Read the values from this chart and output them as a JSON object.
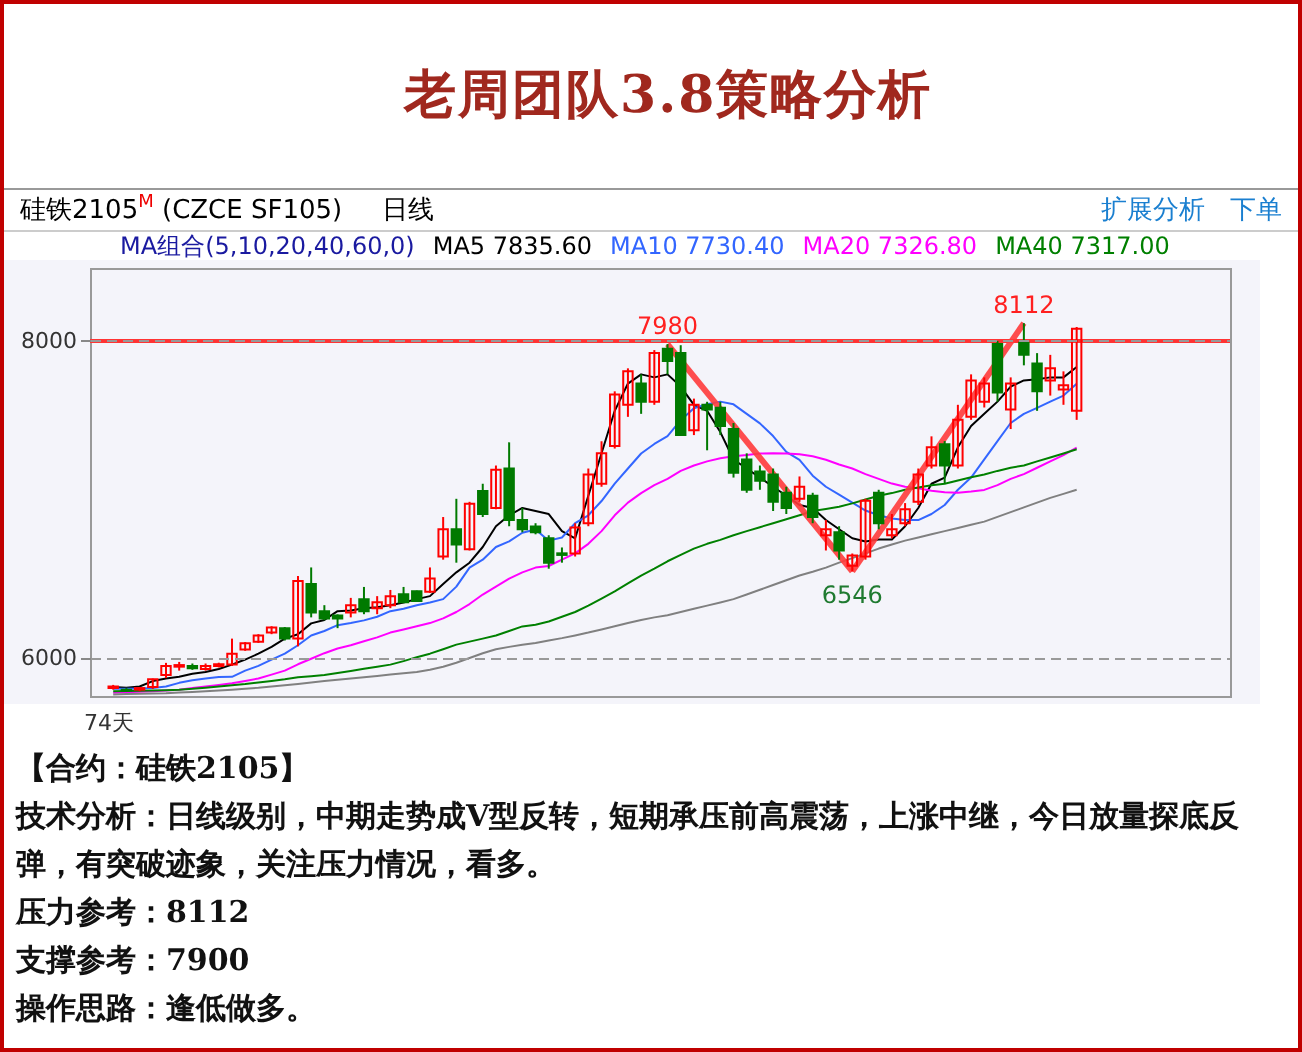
{
  "chart_data": {
    "type": "candlestick",
    "title": "老周团队3.8策略分析",
    "subtitle": "硅铁2105$^{M}$ (CZCE SF105)",
    "categories": [
      null,
      null,
      null,
      null,
      null,
      null,
      null,
      null,
      null,
      null,
      null,
      null,
      null,
      null,
      null,
      null,
      null,
      null,
      null,
      null,
      null,
      null,
      null,
      null,
      null,
      null,
      null,
      null,
      null,
      null,
      null,
      null,
      null,
      null,
      null,
      null,
      null,
      null,
      null,
      null,
      null,
      null,
      null,
      null,
      null,
      null,
      null,
      null,
      null,
      null,
      null,
      null,
      null,
      null,
      null,
      null,
      null,
      null,
      null,
      null,
      null,
      null,
      null,
      null,
      null,
      null,
      null,
      null,
      null,
      null,
      null,
      null,
      null,
      null
    ],
    "ohlc": [
      [
        5810,
        5830,
        5800,
        5820
      ],
      [
        5800,
        5810,
        5785,
        5795
      ],
      [
        5800,
        5815,
        5790,
        5810
      ],
      [
        5816,
        5870,
        5805,
        5866
      ],
      [
        5892,
        5969,
        5873,
        5950
      ],
      [
        5945,
        5975,
        5920,
        5955
      ],
      [
        5950,
        5965,
        5925,
        5935
      ],
      [
        5930,
        5965,
        5920,
        5950
      ],
      [
        5950,
        5970,
        5940,
        5960
      ],
      [
        5958,
        6122,
        5950,
        6027
      ],
      [
        6053,
        6100,
        6045,
        6092
      ],
      [
        6103,
        6150,
        6095,
        6142
      ],
      [
        6161,
        6200,
        6150,
        6192
      ],
      [
        6188,
        6195,
        6110,
        6122
      ],
      [
        6122,
        6517,
        6073,
        6486
      ],
      [
        6467,
        6571,
        6256,
        6287
      ],
      [
        6295,
        6333,
        6238,
        6249
      ],
      [
        6268,
        6275,
        6188,
        6249
      ],
      [
        6287,
        6379,
        6256,
        6333
      ],
      [
        6371,
        6448,
        6276,
        6295
      ],
      [
        6314,
        6390,
        6276,
        6352
      ],
      [
        6333,
        6429,
        6314,
        6390
      ],
      [
        6402,
        6448,
        6352,
        6352
      ],
      [
        6421,
        6425,
        6355,
        6360
      ],
      [
        6417,
        6571,
        6410,
        6502
      ],
      [
        6640,
        6889,
        6620,
        6812
      ],
      [
        6812,
        7004,
        6601,
        6716
      ],
      [
        6686,
        6985,
        6678,
        6973
      ],
      [
        7053,
        7099,
        6889,
        6908
      ],
      [
        6946,
        7214,
        6938,
        7187
      ],
      [
        7195,
        7360,
        6831,
        6870
      ],
      [
        6870,
        6946,
        6793,
        6812
      ],
      [
        6830,
        6850,
        6780,
        6793
      ],
      [
        6755,
        6774,
        6563,
        6601
      ],
      [
        6660,
        6697,
        6601,
        6650
      ],
      [
        6659,
        6850,
        6640,
        6823
      ],
      [
        6850,
        7195,
        6831,
        7157
      ],
      [
        7099,
        7367,
        7080,
        7291
      ],
      [
        7337,
        7682,
        7321,
        7662
      ],
      [
        7597,
        7827,
        7521,
        7808
      ],
      [
        7731,
        7789,
        7540,
        7616
      ],
      [
        7616,
        7942,
        7597,
        7923
      ],
      [
        7950,
        7980,
        7789,
        7873
      ],
      [
        7923,
        7973,
        7406,
        7406
      ],
      [
        7436,
        7636,
        7406,
        7597
      ],
      [
        7597,
        7616,
        7310,
        7567
      ],
      [
        7578,
        7616,
        7406,
        7463
      ],
      [
        7444,
        7482,
        7138,
        7168
      ],
      [
        7252,
        7291,
        7042,
        7061
      ],
      [
        7176,
        7214,
        7061,
        7118
      ],
      [
        7157,
        7195,
        6927,
        6985
      ],
      [
        7042,
        7080,
        6908,
        6946
      ],
      [
        7004,
        7145,
        6985,
        7080
      ],
      [
        7023,
        7042,
        6850,
        6889
      ],
      [
        6774,
        6870,
        6678,
        6812
      ],
      [
        6793,
        6831,
        6620,
        6678
      ],
      [
        6582,
        6659,
        6546,
        6647
      ],
      [
        6640,
        7004,
        6620,
        6992
      ],
      [
        7042,
        7061,
        6812,
        6850
      ],
      [
        6774,
        6908,
        6755,
        6812
      ],
      [
        6850,
        6977,
        6831,
        6938
      ],
      [
        6985,
        7195,
        6965,
        7157
      ],
      [
        7214,
        7398,
        7195,
        7329
      ],
      [
        7348,
        7368,
        7100,
        7214
      ],
      [
        7214,
        7597,
        7195,
        7502
      ],
      [
        7521,
        7789,
        7502,
        7751
      ],
      [
        7616,
        7770,
        7580,
        7731
      ],
      [
        7980,
        8000,
        7617,
        7674
      ],
      [
        7567,
        7770,
        7444,
        7731
      ],
      [
        7988,
        8112,
        7846,
        7912
      ],
      [
        7858,
        7923,
        7559,
        7682
      ],
      [
        7751,
        7912,
        7655,
        7827
      ],
      [
        7693,
        7808,
        7597,
        7720
      ],
      [
        7559,
        8088,
        7502,
        8076
      ]
    ],
    "series": [
      {
        "name": "MA5 7835.60",
        "color": "#000000",
        "type": "line",
        "values": [
          5816,
          5812,
          5820,
          5854,
          5870,
          5881,
          5900,
          5912,
          5930,
          5958,
          5990,
          6027,
          6070,
          6122,
          6150,
          6218,
          6240,
          6295,
          6300,
          6314,
          6320,
          6333,
          6350,
          6371,
          6390,
          6467,
          6540,
          6601,
          6700,
          6831,
          6900,
          6946,
          6927,
          6908,
          6800,
          6755,
          7023,
          7291,
          7559,
          7731,
          7789,
          7770,
          7789,
          7712,
          7597,
          7559,
          7425,
          7252,
          7195,
          7138,
          7080,
          7023,
          6965,
          6946,
          6870,
          6812,
          6755,
          6735,
          6747,
          6747,
          6831,
          6946,
          7099,
          7138,
          7329,
          7463,
          7540,
          7617,
          7712,
          7751,
          7758,
          7770,
          7770,
          7836
        ]
      },
      {
        "name": "MA10 7730.40",
        "color": "#3366ff",
        "type": "line",
        "values": [
          5805,
          5805,
          5807,
          5810,
          5820,
          5843,
          5860,
          5870,
          5880,
          5881,
          5920,
          5950,
          5990,
          6027,
          6080,
          6142,
          6170,
          6207,
          6220,
          6237,
          6260,
          6295,
          6310,
          6333,
          6350,
          6371,
          6450,
          6570,
          6620,
          6700,
          6735,
          6790,
          6810,
          6740,
          6760,
          6850,
          6900,
          6990,
          7100,
          7195,
          7290,
          7350,
          7400,
          7500,
          7575,
          7600,
          7617,
          7600,
          7540,
          7480,
          7400,
          7300,
          7250,
          7150,
          7080,
          7030,
          6980,
          6930,
          6900,
          6880,
          6870,
          6870,
          6908,
          6965,
          7061,
          7138,
          7253,
          7368,
          7482,
          7540,
          7578,
          7617,
          7655,
          7730
        ]
      },
      {
        "name": "MA20 7326.80",
        "color": "#ff00ff",
        "type": "line",
        "values": [
          5780,
          5783,
          5787,
          5790,
          5795,
          5800,
          5810,
          5820,
          5830,
          5840,
          5855,
          5870,
          5895,
          5920,
          5960,
          5995,
          6030,
          6060,
          6080,
          6105,
          6130,
          6160,
          6180,
          6200,
          6220,
          6250,
          6290,
          6340,
          6400,
          6450,
          6500,
          6540,
          6570,
          6580,
          6620,
          6660,
          6720,
          6800,
          6900,
          6980,
          7040,
          7090,
          7130,
          7180,
          7214,
          7240,
          7260,
          7272,
          7280,
          7290,
          7291,
          7290,
          7285,
          7272,
          7250,
          7220,
          7195,
          7160,
          7130,
          7100,
          7080,
          7070,
          7055,
          7045,
          7042,
          7050,
          7060,
          7090,
          7130,
          7160,
          7200,
          7240,
          7280,
          7327
        ]
      },
      {
        "name": "MA40 7317.00",
        "color": "#008000",
        "type": "line",
        "values": [
          5790,
          5792,
          5793,
          5795,
          5797,
          5800,
          5805,
          5812,
          5820,
          5828,
          5835,
          5845,
          5855,
          5865,
          5878,
          5885,
          5892,
          5905,
          5918,
          5932,
          5945,
          5958,
          5980,
          6005,
          6027,
          6055,
          6084,
          6103,
          6122,
          6142,
          6170,
          6199,
          6210,
          6230,
          6260,
          6290,
          6330,
          6375,
          6420,
          6470,
          6520,
          6563,
          6610,
          6650,
          6690,
          6720,
          6745,
          6774,
          6800,
          6825,
          6850,
          6875,
          6900,
          6927,
          6940,
          6954,
          6975,
          7000,
          7023,
          7040,
          7061,
          7075,
          7090,
          7099,
          7120,
          7140,
          7157,
          7180,
          7200,
          7214,
          7240,
          7265,
          7290,
          7317
        ]
      },
      {
        "color": "#808080",
        "type": "line",
        "values": [
          5770,
          5772,
          5774,
          5776,
          5778,
          5782,
          5786,
          5790,
          5795,
          5800,
          5806,
          5812,
          5820,
          5828,
          5836,
          5845,
          5854,
          5862,
          5870,
          5878,
          5886,
          5895,
          5903,
          5911,
          5925,
          5945,
          5970,
          6000,
          6030,
          6055,
          6070,
          6084,
          6095,
          6110,
          6125,
          6142,
          6160,
          6180,
          6200,
          6220,
          6240,
          6256,
          6270,
          6290,
          6310,
          6330,
          6350,
          6371,
          6400,
          6430,
          6460,
          6490,
          6520,
          6544,
          6570,
          6601,
          6630,
          6660,
          6690,
          6716,
          6740,
          6760,
          6780,
          6800,
          6820,
          6840,
          6860,
          6890,
          6920,
          6950,
          6980,
          7010,
          7035,
          7061
        ]
      }
    ],
    "ylim": [
      5760,
      8460
    ],
    "yticks": [
      6000,
      8000
    ],
    "grid": "y",
    "tick_labels": "y",
    "legend": "top",
    "ref_lines": [
      {
        "axis": "y",
        "value": 8000,
        "color": "#ff3333"
      }
    ],
    "annotations": [
      "日线",
      "扩展分析",
      "下单",
      "MA组合(5,10,20,40,60,0)",
      "74天",
      "【合约：硅铁2105】",
      "技术分析：日线级别，中期走势成V型反转，短期承压前高震荡，上涨中继，今日放量探底反弹，有突破迹象，关注压力情况，看多。",
      "压力参考：8112",
      "支撑参考：7900",
      "操作思路：逢低做多。",
      {
        "text": "7980",
        "y": 7980
      },
      {
        "text": "6546",
        "y": 6546
      },
      {
        "text": "8112",
        "y": 8112
      }
    ]
  }
}
